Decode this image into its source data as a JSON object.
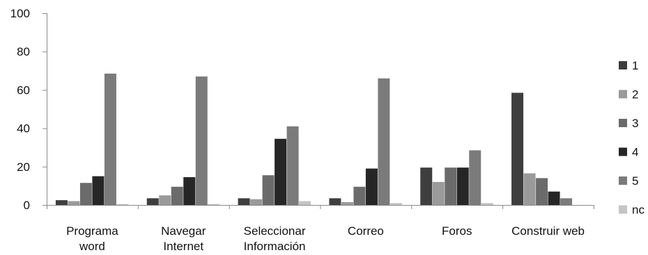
{
  "chart_data": {
    "type": "bar",
    "title": "",
    "xlabel": "",
    "ylabel": "",
    "ylim": [
      0,
      100
    ],
    "yticks": [
      "0",
      "20",
      "40",
      "60",
      "80",
      "100"
    ],
    "grid": false,
    "legend_position": "right",
    "categories": [
      [
        "Programa",
        "word"
      ],
      [
        "Navegar",
        "Internet"
      ],
      [
        "Seleccionar",
        "Información"
      ],
      [
        "Correo"
      ],
      [
        "Foros"
      ],
      [
        "Construir web"
      ]
    ],
    "series": [
      {
        "name": "1",
        "color": "#3e3e3e",
        "values": [
          2.5,
          3.5,
          3.5,
          3.5,
          19.5,
          58.5
        ]
      },
      {
        "name": "2",
        "color": "#9a9a9a",
        "values": [
          2,
          5,
          3,
          1.5,
          12,
          16.5
        ]
      },
      {
        "name": "3",
        "color": "#6b6b6b",
        "values": [
          11.5,
          9.5,
          15.5,
          9.5,
          19.5,
          14
        ]
      },
      {
        "name": "4",
        "color": "#262626",
        "values": [
          15,
          14.5,
          34.5,
          19,
          19.5,
          7
        ]
      },
      {
        "name": "5",
        "color": "#7b7b7b",
        "values": [
          68.5,
          67,
          41,
          66,
          28.5,
          3.5
        ]
      },
      {
        "name": "nc",
        "color": "#c4c4c4",
        "values": [
          0.5,
          0.5,
          2,
          1,
          1,
          0
        ]
      }
    ]
  }
}
